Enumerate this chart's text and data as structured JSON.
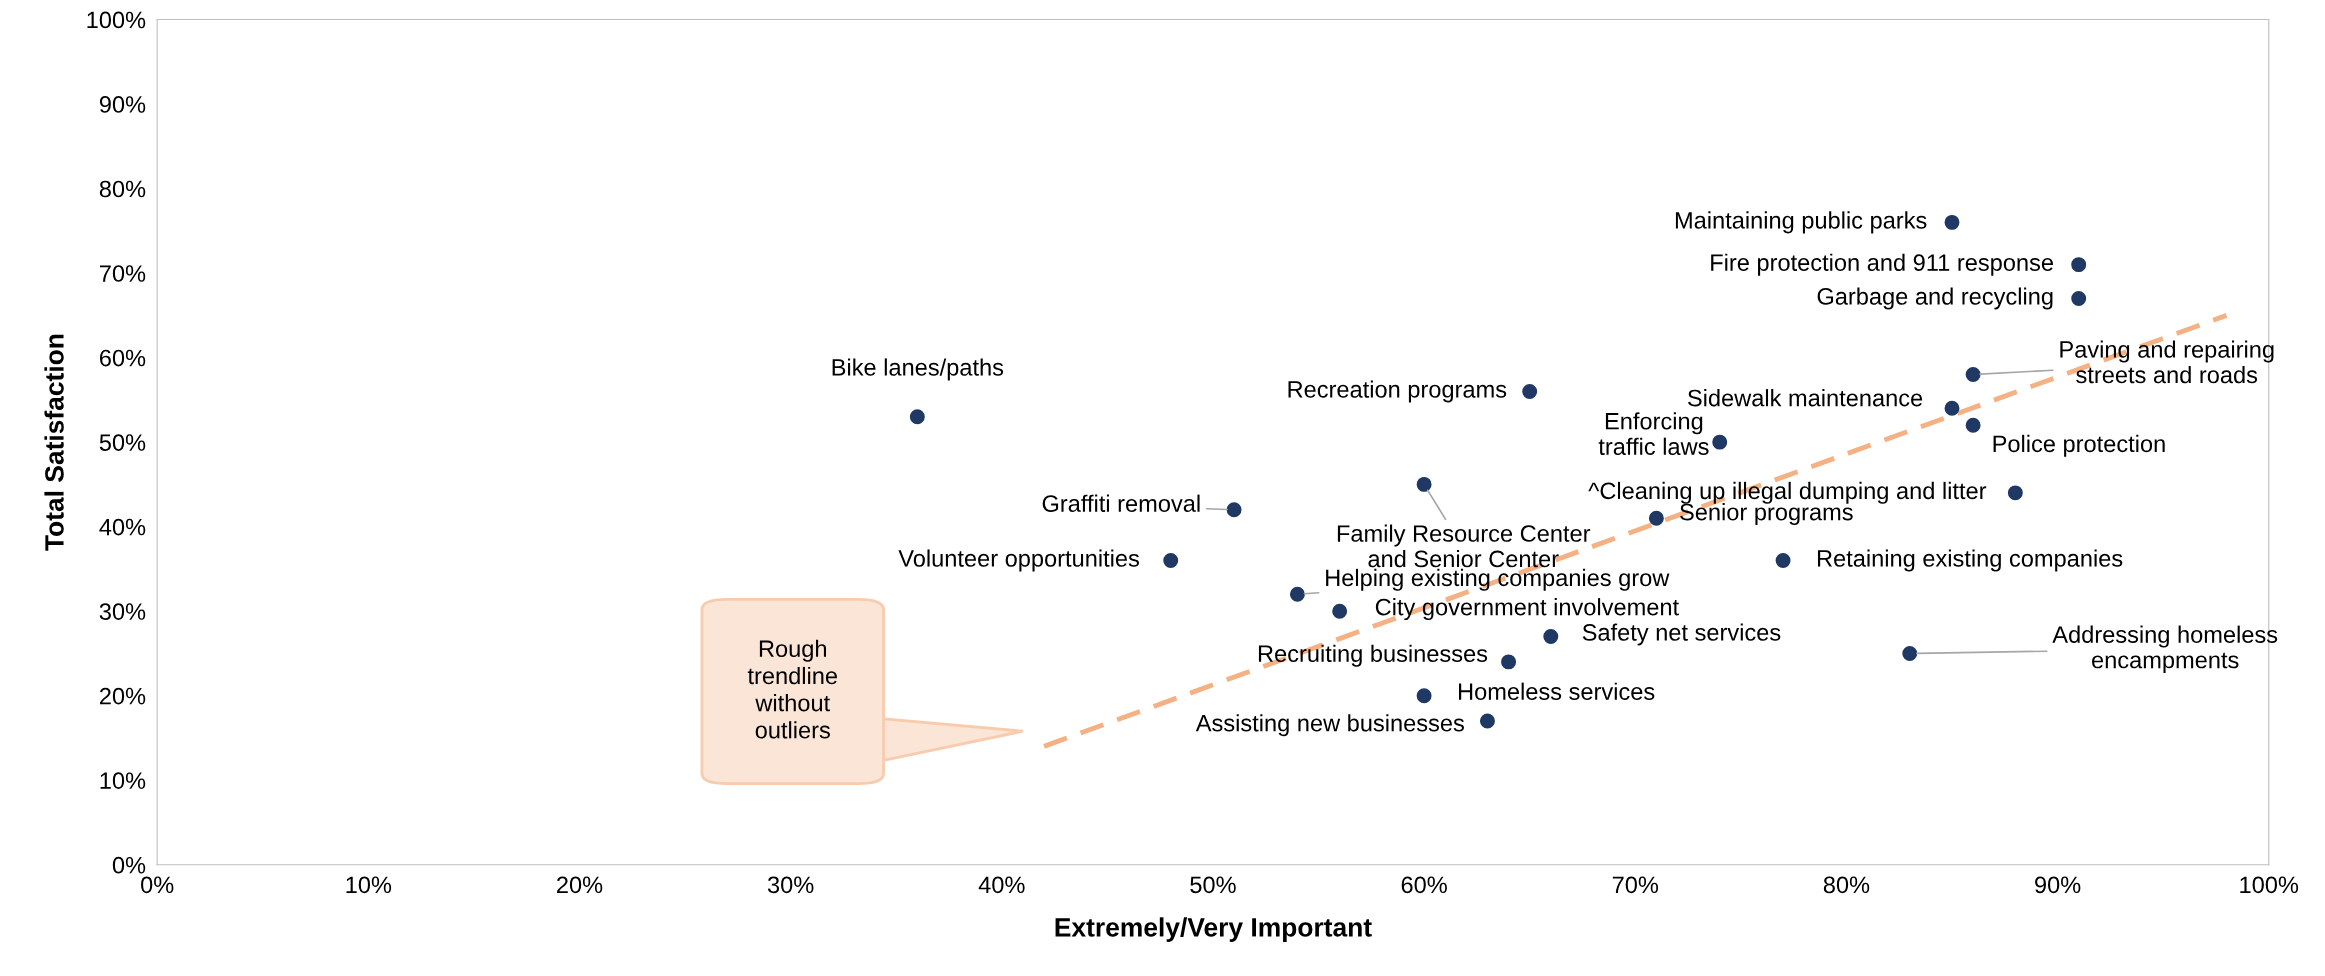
{
  "chart_data": {
    "type": "scatter",
    "xlabel": "Extremely/Very Important",
    "ylabel": "Total Satisfaction",
    "xlim": [
      0,
      100
    ],
    "ylim": [
      0,
      100
    ],
    "xticks": [
      {
        "value": 0,
        "label": "0%"
      },
      {
        "value": 10,
        "label": "10%"
      },
      {
        "value": 20,
        "label": "20%"
      },
      {
        "value": 30,
        "label": "30%"
      },
      {
        "value": 40,
        "label": "40%"
      },
      {
        "value": 50,
        "label": "50%"
      },
      {
        "value": 60,
        "label": "60%"
      },
      {
        "value": 70,
        "label": "70%"
      },
      {
        "value": 80,
        "label": "80%"
      },
      {
        "value": 90,
        "label": "90%"
      },
      {
        "value": 100,
        "label": "100%"
      }
    ],
    "yticks": [
      {
        "value": 0,
        "label": "0%"
      },
      {
        "value": 10,
        "label": "10%"
      },
      {
        "value": 20,
        "label": "20%"
      },
      {
        "value": 30,
        "label": "30%"
      },
      {
        "value": 40,
        "label": "40%"
      },
      {
        "value": 50,
        "label": "50%"
      },
      {
        "value": 60,
        "label": "60%"
      },
      {
        "value": 70,
        "label": "70%"
      },
      {
        "value": 80,
        "label": "80%"
      },
      {
        "value": 90,
        "label": "90%"
      },
      {
        "value": 100,
        "label": "100%"
      }
    ],
    "series": [
      {
        "marker": "circle",
        "color": "#1f3864",
        "x": [
          85,
          91,
          91,
          86,
          85,
          86,
          88,
          77,
          83,
          65,
          74,
          60,
          71,
          51,
          36,
          48,
          54,
          56,
          66,
          64,
          60,
          63
        ],
        "values": [
          76,
          71,
          67,
          58,
          54,
          52,
          44,
          36,
          25,
          56,
          50,
          45,
          41,
          42,
          53,
          36,
          32,
          30,
          27,
          24,
          20,
          17
        ]
      },
      {
        "type": "line",
        "marker": "none",
        "line_style": "dashed",
        "color": "#f4b183",
        "x": [
          42,
          98
        ],
        "values": [
          14,
          65
        ]
      }
    ],
    "annotations": [
      {
        "text": "Maintaining public parks",
        "x": 85,
        "y": 76
      },
      {
        "text": "Fire protection and 911 response",
        "x": 91,
        "y": 71
      },
      {
        "text": "Garbage and recycling",
        "x": 91,
        "y": 67
      },
      {
        "text": "Paving and repairing\nstreets and roads",
        "x": 86,
        "y": 58
      },
      {
        "text": "Sidewalk maintenance",
        "x": 85,
        "y": 54
      },
      {
        "text": "Police protection",
        "x": 86,
        "y": 52
      },
      {
        "text": "^Cleaning up illegal dumping and litter",
        "x": 88,
        "y": 44
      },
      {
        "text": "Retaining existing companies",
        "x": 77,
        "y": 36
      },
      {
        "text": "Addressing homeless\nencampments",
        "x": 83,
        "y": 25
      },
      {
        "text": "Recreation programs",
        "x": 65,
        "y": 56
      },
      {
        "text": "Enforcing\ntraffic laws",
        "x": 74,
        "y": 50
      },
      {
        "text": "Family Resource Center\nand Senior Center",
        "x": 60,
        "y": 45
      },
      {
        "text": "Senior programs",
        "x": 71,
        "y": 41
      },
      {
        "text": "Graffiti removal",
        "x": 51,
        "y": 42
      },
      {
        "text": "Bike lanes/paths",
        "x": 36,
        "y": 53
      },
      {
        "text": "Volunteer opportunities",
        "x": 48,
        "y": 36
      },
      {
        "text": "Helping existing companies grow",
        "x": 54,
        "y": 32
      },
      {
        "text": "City government involvement",
        "x": 56,
        "y": 30
      },
      {
        "text": "Safety net services",
        "x": 66,
        "y": 27
      },
      {
        "text": "Recruiting businesses",
        "x": 64,
        "y": 24
      },
      {
        "text": "Homeless services",
        "x": 60,
        "y": 20
      },
      {
        "text": "Assisting new businesses",
        "x": 63,
        "y": 17
      },
      "Rough\ntrendline\nwithout\noutliers"
    ]
  }
}
